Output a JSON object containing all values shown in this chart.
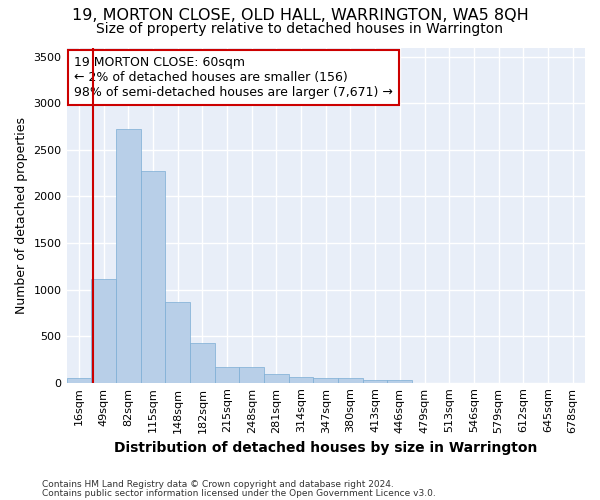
{
  "title": "19, MORTON CLOSE, OLD HALL, WARRINGTON, WA5 8QH",
  "subtitle": "Size of property relative to detached houses in Warrington",
  "xlabel": "Distribution of detached houses by size in Warrington",
  "ylabel": "Number of detached properties",
  "footnote1": "Contains HM Land Registry data © Crown copyright and database right 2024.",
  "footnote2": "Contains public sector information licensed under the Open Government Licence v3.0.",
  "bar_labels": [
    "16sqm",
    "49sqm",
    "82sqm",
    "115sqm",
    "148sqm",
    "182sqm",
    "215sqm",
    "248sqm",
    "281sqm",
    "314sqm",
    "347sqm",
    "380sqm",
    "413sqm",
    "446sqm",
    "479sqm",
    "513sqm",
    "546sqm",
    "579sqm",
    "612sqm",
    "645sqm",
    "678sqm"
  ],
  "bar_values": [
    50,
    1110,
    2720,
    2270,
    870,
    430,
    170,
    170,
    95,
    65,
    55,
    45,
    30,
    25,
    0,
    0,
    0,
    0,
    0,
    0,
    0
  ],
  "bar_color": "#b8cfe8",
  "bar_edge_color": "#7badd4",
  "annotation_text": "19 MORTON CLOSE: 60sqm\n← 2% of detached houses are smaller (156)\n98% of semi-detached houses are larger (7,671) →",
  "annotation_box_edge": "#cc0000",
  "vline_color": "#cc0000",
  "vline_pos": 0.575,
  "ylim": [
    0,
    3600
  ],
  "yticks": [
    0,
    500,
    1000,
    1500,
    2000,
    2500,
    3000,
    3500
  ],
  "background_color": "#e8eef8",
  "grid_color": "#ffffff",
  "title_fontsize": 11.5,
  "subtitle_fontsize": 10,
  "xlabel_fontsize": 10,
  "ylabel_fontsize": 9,
  "tick_fontsize": 8,
  "annotation_fontsize": 9,
  "footnote_fontsize": 6.5
}
